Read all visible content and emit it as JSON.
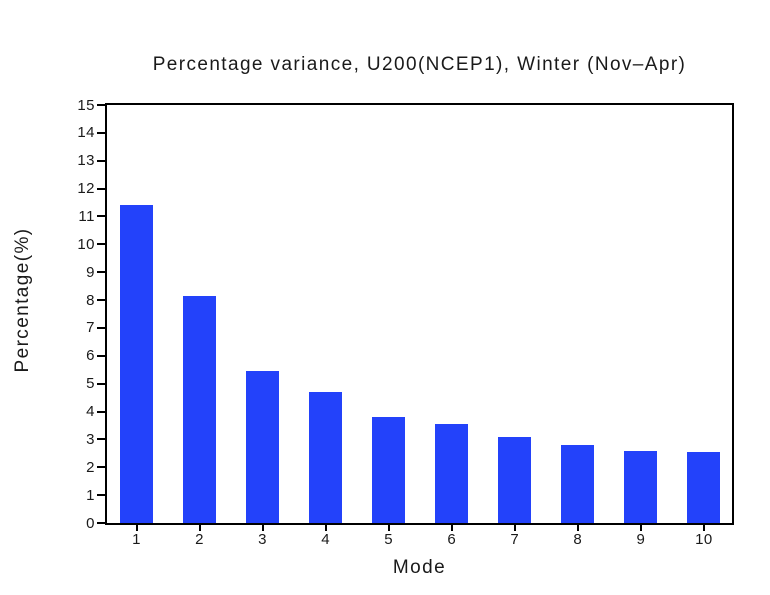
{
  "chart_data": {
    "type": "bar",
    "title": "Percentage variance, U200(NCEP1), Winter (Nov–Apr)",
    "xlabel": "Mode",
    "ylabel": "Percentage(%)",
    "categories": [
      "1",
      "2",
      "3",
      "4",
      "5",
      "6",
      "7",
      "8",
      "9",
      "10"
    ],
    "series": [
      {
        "name": "Percentage variance",
        "values": [
          11.4,
          8.15,
          5.45,
          4.7,
          3.8,
          3.55,
          3.1,
          2.8,
          2.6,
          2.55
        ]
      }
    ],
    "ylim": [
      0,
      15
    ],
    "ytick_step": 1,
    "ytick_labels": [
      "0",
      "1",
      "2",
      "3",
      "4",
      "5",
      "6",
      "7",
      "8",
      "9",
      "10",
      "11",
      "12",
      "13",
      "14",
      "15"
    ],
    "grid": false,
    "legend": "none",
    "bar_color": "#2342fa",
    "axis_color": "#000000",
    "background_color": "#ffffff",
    "text_color": "#1a1a1a"
  }
}
